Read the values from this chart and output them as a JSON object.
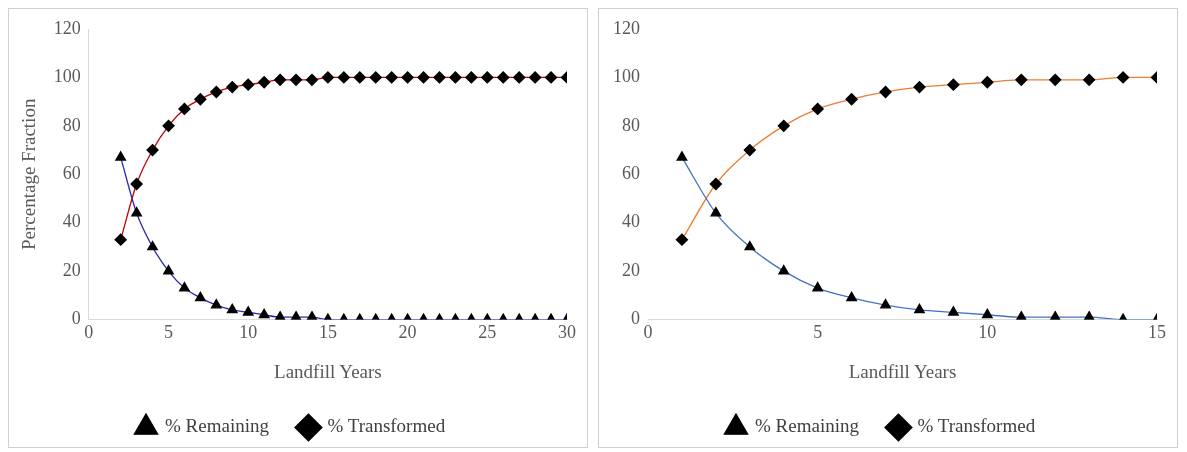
{
  "chart_data": [
    {
      "type": "line",
      "xlabel": "Landfill Years",
      "ylabel": "Percentage Fraction",
      "x": [
        2,
        3,
        4,
        5,
        6,
        7,
        8,
        9,
        10,
        11,
        12,
        13,
        14,
        15,
        16,
        17,
        18,
        19,
        20,
        21,
        22,
        23,
        24,
        25,
        26,
        27,
        28,
        29,
        30
      ],
      "xlim": [
        0,
        30
      ],
      "xticks": [
        0,
        5,
        10,
        15,
        20,
        25,
        30
      ],
      "ylim": [
        0,
        120
      ],
      "yticks": [
        0,
        20,
        40,
        60,
        80,
        100,
        120
      ],
      "grid": false,
      "legend": "bottom",
      "series": [
        {
          "name": "% Remaining",
          "color": "#2a2ab0",
          "marker": "triangle",
          "values": [
            67,
            44,
            30,
            20,
            13,
            9,
            6,
            4,
            3,
            2,
            1,
            1,
            1,
            0,
            0,
            0,
            0,
            0,
            0,
            0,
            0,
            0,
            0,
            0,
            0,
            0,
            0,
            0,
            0
          ]
        },
        {
          "name": "% Transformed",
          "color": "#c00000",
          "marker": "diamond",
          "values": [
            33,
            56,
            70,
            80,
            87,
            91,
            94,
            96,
            97,
            98,
            99,
            99,
            99,
            100,
            100,
            100,
            100,
            100,
            100,
            100,
            100,
            100,
            100,
            100,
            100,
            100,
            100,
            100,
            100
          ]
        }
      ]
    },
    {
      "type": "line",
      "xlabel": "Landfill Years",
      "x": [
        1,
        2,
        3,
        4,
        5,
        6,
        7,
        8,
        9,
        10,
        11,
        12,
        13,
        14,
        15
      ],
      "xlim": [
        0,
        15
      ],
      "xticks": [
        0,
        5,
        10,
        15
      ],
      "ylim": [
        0,
        120
      ],
      "yticks": [
        0,
        20,
        40,
        60,
        80,
        100,
        120
      ],
      "grid": false,
      "legend": "bottom",
      "series": [
        {
          "name": "% Remaining",
          "color": "#4472c4",
          "marker": "triangle",
          "values": [
            67,
            44,
            30,
            20,
            13,
            9,
            6,
            4,
            3,
            2,
            1,
            1,
            1,
            0,
            0
          ]
        },
        {
          "name": "% Transformed",
          "color": "#ed7d31",
          "marker": "diamond",
          "values": [
            33,
            56,
            70,
            80,
            87,
            91,
            94,
            96,
            97,
            98,
            99,
            99,
            99,
            100,
            100
          ]
        }
      ]
    }
  ]
}
